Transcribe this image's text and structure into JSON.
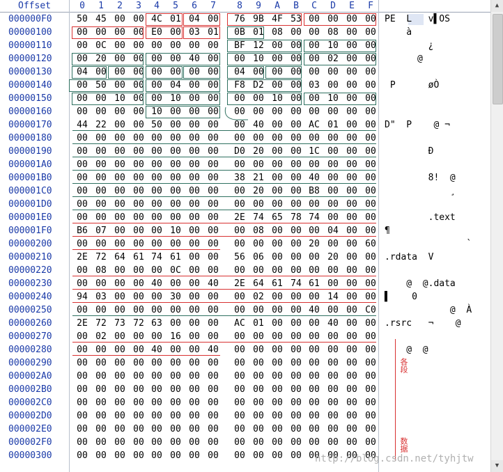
{
  "header": {
    "offset_label": "Offset",
    "columns": [
      "0",
      "1",
      "2",
      "3",
      "4",
      "5",
      "6",
      "7",
      "8",
      "9",
      "A",
      "B",
      "C",
      "D",
      "E",
      "F"
    ]
  },
  "rows": [
    {
      "offset": "000000F0",
      "bytes": [
        "50",
        "45",
        "00",
        "00",
        "4C",
        "01",
        "04",
        "00",
        "76",
        "9B",
        "4F",
        "53",
        "00",
        "00",
        "00",
        "00"
      ],
      "ascii": "PE  L   v▌OS"
    },
    {
      "offset": "00000100",
      "bytes": [
        "00",
        "00",
        "00",
        "00",
        "E0",
        "00",
        "03",
        "01",
        "0B",
        "01",
        "08",
        "00",
        "00",
        "08",
        "00",
        "00"
      ],
      "ascii": "    à"
    },
    {
      "offset": "00000110",
      "bytes": [
        "00",
        "0C",
        "00",
        "00",
        "00",
        "00",
        "00",
        "00",
        "BF",
        "12",
        "00",
        "00",
        "00",
        "10",
        "00",
        "00"
      ],
      "ascii": "        ¿"
    },
    {
      "offset": "00000120",
      "bytes": [
        "00",
        "20",
        "00",
        "00",
        "00",
        "00",
        "40",
        "00",
        "00",
        "10",
        "00",
        "00",
        "00",
        "02",
        "00",
        "00"
      ],
      "ascii": "      @"
    },
    {
      "offset": "00000130",
      "bytes": [
        "04",
        "00",
        "00",
        "00",
        "00",
        "00",
        "00",
        "00",
        "04",
        "00",
        "00",
        "00",
        "00",
        "00",
        "00",
        "00"
      ],
      "ascii": ""
    },
    {
      "offset": "00000140",
      "bytes": [
        "00",
        "50",
        "00",
        "00",
        "00",
        "04",
        "00",
        "00",
        "F8",
        "D2",
        "00",
        "00",
        "03",
        "00",
        "00",
        "00"
      ],
      "ascii": " P      øÒ"
    },
    {
      "offset": "00000150",
      "bytes": [
        "00",
        "00",
        "10",
        "00",
        "00",
        "10",
        "00",
        "00",
        "00",
        "00",
        "10",
        "00",
        "00",
        "10",
        "00",
        "00"
      ],
      "ascii": ""
    },
    {
      "offset": "00000160",
      "bytes": [
        "00",
        "00",
        "00",
        "00",
        "10",
        "00",
        "00",
        "00",
        "00",
        "00",
        "00",
        "00",
        "00",
        "00",
        "00",
        "00"
      ],
      "ascii": ""
    },
    {
      "offset": "00000170",
      "bytes": [
        "44",
        "22",
        "00",
        "00",
        "50",
        "00",
        "00",
        "00",
        "00",
        "40",
        "00",
        "00",
        "AC",
        "01",
        "00",
        "00"
      ],
      "ascii": "D\"  P    @ ¬"
    },
    {
      "offset": "00000180",
      "bytes": [
        "00",
        "00",
        "00",
        "00",
        "00",
        "00",
        "00",
        "00",
        "00",
        "00",
        "00",
        "00",
        "00",
        "00",
        "00",
        "00"
      ],
      "ascii": ""
    },
    {
      "offset": "00000190",
      "bytes": [
        "00",
        "00",
        "00",
        "00",
        "00",
        "00",
        "00",
        "00",
        "D0",
        "20",
        "00",
        "00",
        "1C",
        "00",
        "00",
        "00"
      ],
      "ascii": "        Ð"
    },
    {
      "offset": "000001A0",
      "bytes": [
        "00",
        "00",
        "00",
        "00",
        "00",
        "00",
        "00",
        "00",
        "00",
        "00",
        "00",
        "00",
        "00",
        "00",
        "00",
        "00"
      ],
      "ascii": ""
    },
    {
      "offset": "000001B0",
      "bytes": [
        "00",
        "00",
        "00",
        "00",
        "00",
        "00",
        "00",
        "00",
        "38",
        "21",
        "00",
        "00",
        "40",
        "00",
        "00",
        "00"
      ],
      "ascii": "        8!  @"
    },
    {
      "offset": "000001C0",
      "bytes": [
        "00",
        "00",
        "00",
        "00",
        "00",
        "00",
        "00",
        "00",
        "00",
        "20",
        "00",
        "00",
        "B8",
        "00",
        "00",
        "00"
      ],
      "ascii": "            ¸"
    },
    {
      "offset": "000001D0",
      "bytes": [
        "00",
        "00",
        "00",
        "00",
        "00",
        "00",
        "00",
        "00",
        "00",
        "00",
        "00",
        "00",
        "00",
        "00",
        "00",
        "00"
      ],
      "ascii": ""
    },
    {
      "offset": "000001E0",
      "bytes": [
        "00",
        "00",
        "00",
        "00",
        "00",
        "00",
        "00",
        "00",
        "2E",
        "74",
        "65",
        "78",
        "74",
        "00",
        "00",
        "00"
      ],
      "ascii": "        .text"
    },
    {
      "offset": "000001F0",
      "bytes": [
        "B6",
        "07",
        "00",
        "00",
        "00",
        "10",
        "00",
        "00",
        "00",
        "08",
        "00",
        "00",
        "00",
        "04",
        "00",
        "00"
      ],
      "ascii": "¶"
    },
    {
      "offset": "00000200",
      "bytes": [
        "00",
        "00",
        "00",
        "00",
        "00",
        "00",
        "00",
        "00",
        "00",
        "00",
        "00",
        "00",
        "20",
        "00",
        "00",
        "60"
      ],
      "ascii": "               `"
    },
    {
      "offset": "00000210",
      "bytes": [
        "2E",
        "72",
        "64",
        "61",
        "74",
        "61",
        "00",
        "00",
        "56",
        "06",
        "00",
        "00",
        "00",
        "20",
        "00",
        "00"
      ],
      "ascii": ".rdata  V"
    },
    {
      "offset": "00000220",
      "bytes": [
        "00",
        "08",
        "00",
        "00",
        "00",
        "0C",
        "00",
        "00",
        "00",
        "00",
        "00",
        "00",
        "00",
        "00",
        "00",
        "00"
      ],
      "ascii": ""
    },
    {
      "offset": "00000230",
      "bytes": [
        "00",
        "00",
        "00",
        "00",
        "40",
        "00",
        "00",
        "40",
        "2E",
        "64",
        "61",
        "74",
        "61",
        "00",
        "00",
        "00"
      ],
      "ascii": "    @  @.data"
    },
    {
      "offset": "00000240",
      "bytes": [
        "94",
        "03",
        "00",
        "00",
        "00",
        "30",
        "00",
        "00",
        "00",
        "02",
        "00",
        "00",
        "00",
        "14",
        "00",
        "00"
      ],
      "ascii": "▌    0"
    },
    {
      "offset": "00000250",
      "bytes": [
        "00",
        "00",
        "00",
        "00",
        "00",
        "00",
        "00",
        "00",
        "00",
        "00",
        "00",
        "00",
        "40",
        "00",
        "00",
        "C0"
      ],
      "ascii": "            @  À"
    },
    {
      "offset": "00000260",
      "bytes": [
        "2E",
        "72",
        "73",
        "72",
        "63",
        "00",
        "00",
        "00",
        "AC",
        "01",
        "00",
        "00",
        "00",
        "40",
        "00",
        "00"
      ],
      "ascii": ".rsrc   ¬    @"
    },
    {
      "offset": "00000270",
      "bytes": [
        "00",
        "02",
        "00",
        "00",
        "00",
        "16",
        "00",
        "00",
        "00",
        "00",
        "00",
        "00",
        "00",
        "00",
        "00",
        "00"
      ],
      "ascii": ""
    },
    {
      "offset": "00000280",
      "bytes": [
        "00",
        "00",
        "00",
        "00",
        "40",
        "00",
        "00",
        "40",
        "00",
        "00",
        "00",
        "00",
        "00",
        "00",
        "00",
        "00"
      ],
      "ascii": "    @  @"
    },
    {
      "offset": "00000290",
      "bytes": [
        "00",
        "00",
        "00",
        "00",
        "00",
        "00",
        "00",
        "00",
        "00",
        "00",
        "00",
        "00",
        "00",
        "00",
        "00",
        "00"
      ],
      "ascii": ""
    },
    {
      "offset": "000002A0",
      "bytes": [
        "00",
        "00",
        "00",
        "00",
        "00",
        "00",
        "00",
        "00",
        "00",
        "00",
        "00",
        "00",
        "00",
        "00",
        "00",
        "00"
      ],
      "ascii": ""
    },
    {
      "offset": "000002B0",
      "bytes": [
        "00",
        "00",
        "00",
        "00",
        "00",
        "00",
        "00",
        "00",
        "00",
        "00",
        "00",
        "00",
        "00",
        "00",
        "00",
        "00"
      ],
      "ascii": ""
    },
    {
      "offset": "000002C0",
      "bytes": [
        "00",
        "00",
        "00",
        "00",
        "00",
        "00",
        "00",
        "00",
        "00",
        "00",
        "00",
        "00",
        "00",
        "00",
        "00",
        "00"
      ],
      "ascii": ""
    },
    {
      "offset": "000002D0",
      "bytes": [
        "00",
        "00",
        "00",
        "00",
        "00",
        "00",
        "00",
        "00",
        "00",
        "00",
        "00",
        "00",
        "00",
        "00",
        "00",
        "00"
      ],
      "ascii": ""
    },
    {
      "offset": "000002E0",
      "bytes": [
        "00",
        "00",
        "00",
        "00",
        "00",
        "00",
        "00",
        "00",
        "00",
        "00",
        "00",
        "00",
        "00",
        "00",
        "00",
        "00"
      ],
      "ascii": ""
    },
    {
      "offset": "000002F0",
      "bytes": [
        "00",
        "00",
        "00",
        "00",
        "00",
        "00",
        "00",
        "00",
        "00",
        "00",
        "00",
        "00",
        "00",
        "00",
        "00",
        "00"
      ],
      "ascii": ""
    },
    {
      "offset": "00000300",
      "bytes": [
        "00",
        "00",
        "00",
        "00",
        "00",
        "00",
        "00",
        "00",
        "00",
        "00",
        "00",
        "00",
        "00",
        "00",
        "00",
        "00"
      ],
      "ascii": ""
    }
  ],
  "annotations": {
    "top_label": "各段",
    "bottom_label": "数据"
  },
  "watermark": "http://blog.csdn.net/tyhjtw",
  "colors": {
    "offset_blue": "#1a3aa8",
    "highlight_red": "#d83030",
    "highlight_green": "#2e7060"
  }
}
